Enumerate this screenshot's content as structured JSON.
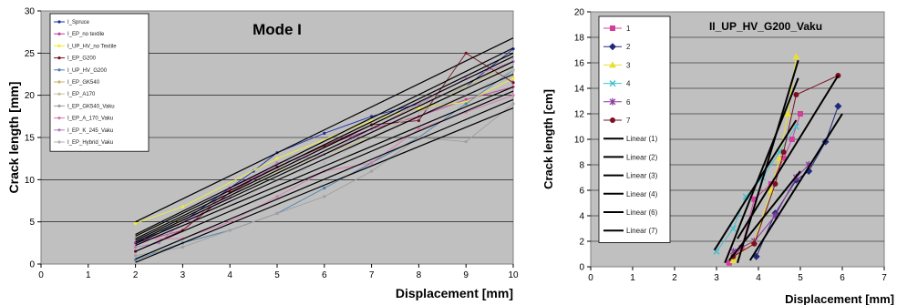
{
  "chart_data": [
    {
      "type": "line",
      "title": "Mode I",
      "xlabel": "Displacement  [mm]",
      "ylabel": "Crack length  [mm]",
      "xlim": [
        0,
        10
      ],
      "ylim": [
        0,
        30
      ],
      "xticks": [
        "0",
        "1",
        "2",
        "3",
        "4",
        "5",
        "6",
        "7",
        "8",
        "9",
        "10"
      ],
      "yticks": [
        "0",
        "5",
        "10",
        "15",
        "20",
        "25",
        "30"
      ],
      "grid": "horizontal",
      "legend_position": "top-left",
      "series": [
        {
          "name": "I_Spruce",
          "color": "#1b2ea6",
          "x": [
            2,
            3,
            4,
            4.5,
            5,
            6,
            7,
            8,
            9,
            10
          ],
          "y": [
            2.5,
            5,
            9,
            11,
            13.2,
            15.5,
            17.5,
            19,
            21,
            25.5
          ]
        },
        {
          "name": "I_EP_no textile",
          "color": "#c2409a",
          "x": [
            2,
            3,
            4,
            5,
            6,
            7,
            8,
            9,
            10
          ],
          "y": [
            2.5,
            4,
            9,
            11.5,
            14,
            16,
            17.5,
            19.5,
            21
          ]
        },
        {
          "name": "I_UP_HV_no Textile",
          "color": "#f0ef2f",
          "x": [
            2,
            3,
            5,
            7,
            8,
            9,
            10
          ],
          "y": [
            4.8,
            6.8,
            12.5,
            17,
            18.5,
            19.2,
            22
          ]
        },
        {
          "name": "I_EP_G200",
          "color": "#7a1020",
          "x": [
            2,
            3,
            4,
            5,
            6,
            7,
            8,
            9,
            10
          ],
          "y": [
            1.5,
            4,
            8.5,
            11.5,
            14,
            16.5,
            17,
            25,
            21.5
          ]
        },
        {
          "name": "I_UP_HV_G200",
          "color": "#4a7fb0",
          "x": [
            2,
            3,
            4,
            5,
            6,
            7,
            8,
            9,
            10
          ],
          "y": [
            0.5,
            2.5,
            4,
            6,
            9,
            12,
            15,
            19,
            23
          ]
        },
        {
          "name": "I_EP_GK540",
          "color": "#c7b46a",
          "x": [
            2,
            3,
            4,
            5,
            6,
            7,
            8,
            9,
            10
          ],
          "y": [
            3,
            5,
            8,
            11,
            13,
            15,
            18,
            21,
            24
          ]
        },
        {
          "name": "I_EP_A170",
          "color": "#c0c0a0",
          "x": [
            2,
            3,
            4,
            5,
            6,
            7,
            8,
            9,
            10
          ],
          "y": [
            3.5,
            5.5,
            8,
            11,
            13,
            16,
            19,
            21,
            23
          ]
        },
        {
          "name": "I_EP_GK540_Vaku",
          "color": "#9f9f9f",
          "x": [
            2,
            3,
            4,
            5,
            6,
            7,
            8,
            9,
            10
          ],
          "y": [
            1,
            2,
            4,
            6,
            8,
            11,
            15,
            14.5,
            19
          ]
        },
        {
          "name": "I_EP_A_170_Vaku",
          "color": "#d879b0",
          "x": [
            2,
            3,
            4,
            5,
            6,
            7,
            8,
            9,
            10
          ],
          "y": [
            3,
            3,
            5,
            8,
            11,
            12,
            16,
            18,
            20
          ]
        },
        {
          "name": "I_EP_K_245_Vaku",
          "color": "#b37bc0",
          "x": [
            2,
            2.5,
            3,
            4,
            5,
            6,
            7,
            8,
            9,
            10
          ],
          "y": [
            2,
            2.5,
            5,
            8,
            12,
            13,
            16,
            19,
            22,
            24
          ]
        },
        {
          "name": "I_EP_Hybrid_Vaku",
          "color": "#b3b3b3",
          "x": [
            2,
            3,
            4,
            5,
            6,
            7,
            8,
            9,
            10
          ],
          "y": [
            3,
            4.5,
            7,
            10,
            12,
            15,
            18,
            20,
            23
          ]
        }
      ],
      "trend_lines": [
        {
          "x": [
            2,
            10
          ],
          "y": [
            5,
            26.8
          ]
        },
        {
          "x": [
            2,
            10
          ],
          "y": [
            3.5,
            25.6
          ]
        },
        {
          "x": [
            2,
            10
          ],
          "y": [
            3.3,
            25.0
          ]
        },
        {
          "x": [
            2,
            10
          ],
          "y": [
            3.0,
            24.6
          ]
        },
        {
          "x": [
            2,
            10
          ],
          "y": [
            2.8,
            24.0
          ]
        },
        {
          "x": [
            2,
            10
          ],
          "y": [
            2.6,
            23.4
          ]
        },
        {
          "x": [
            2,
            10
          ],
          "y": [
            2.4,
            22.5
          ]
        },
        {
          "x": [
            2,
            10
          ],
          "y": [
            2.2,
            21.0
          ]
        },
        {
          "x": [
            2,
            10
          ],
          "y": [
            1.5,
            20.5
          ]
        },
        {
          "x": [
            2,
            10
          ],
          "y": [
            0.6,
            19.5
          ]
        },
        {
          "x": [
            2,
            10
          ],
          "y": [
            0.2,
            18.5
          ]
        }
      ]
    },
    {
      "type": "line",
      "title": "II_UP_HV_G200_Vaku",
      "xlabel": "Displacement  [mm]",
      "ylabel": "Crack length  [cm]",
      "xlim": [
        0,
        7
      ],
      "ylim": [
        0,
        20
      ],
      "xticks": [
        "0",
        "1",
        "2",
        "3",
        "4",
        "5",
        "6",
        "7"
      ],
      "yticks": [
        "0",
        "2",
        "4",
        "6",
        "8",
        "10",
        "12",
        "14",
        "16",
        "18",
        "20"
      ],
      "grid": "horizontal",
      "legend_position": "top-left",
      "series": [
        {
          "name": "1",
          "color": "#d0409a",
          "marker": "square",
          "x": [
            3.3,
            3.6,
            3.9,
            4.3,
            4.6,
            4.8,
            5.0
          ],
          "y": [
            0.3,
            1.5,
            5.3,
            6.5,
            8.5,
            10,
            12
          ]
        },
        {
          "name": "2",
          "color": "#1e2a7a",
          "marker": "diamond",
          "x": [
            3.95,
            4.4,
            4.9,
            5.2,
            5.6,
            5.9
          ],
          "y": [
            0.8,
            4.2,
            6.8,
            7.5,
            9.8,
            12.6
          ]
        },
        {
          "name": "3",
          "color": "#e8e030",
          "marker": "triangle",
          "x": [
            3.4,
            3.9,
            4.3,
            4.5,
            4.7,
            4.9
          ],
          "y": [
            0.5,
            2,
            6,
            8.5,
            12,
            16.5
          ]
        },
        {
          "name": "4",
          "color": "#40c0d0",
          "marker": "x",
          "x": [
            3.0,
            3.4,
            3.7,
            4.1,
            4.5,
            4.9
          ],
          "y": [
            1.2,
            3,
            5.5,
            7,
            9,
            11
          ]
        },
        {
          "name": "6",
          "color": "#8a3aa0",
          "marker": "star",
          "x": [
            3.4,
            3.9,
            4.4,
            4.9,
            5.2
          ],
          "y": [
            1.2,
            2,
            4,
            7,
            8
          ]
        },
        {
          "name": "7",
          "color": "#7a1020",
          "marker": "circle",
          "x": [
            3.4,
            3.9,
            4.4,
            4.6,
            4.9,
            5.9
          ],
          "y": [
            0.8,
            1.8,
            6.5,
            9,
            13.5,
            15
          ]
        }
      ],
      "trend_lines": [
        {
          "name": "Linear (1)",
          "x": [
            3.2,
            4.95
          ],
          "y": [
            0.3,
            14.8
          ]
        },
        {
          "name": "Linear (2)",
          "x": [
            3.8,
            6.0
          ],
          "y": [
            0.5,
            12.0
          ]
        },
        {
          "name": "Linear (3)",
          "x": [
            3.5,
            4.95
          ],
          "y": [
            0.3,
            16.2
          ]
        },
        {
          "name": "Linear (4)",
          "x": [
            2.95,
            4.9
          ],
          "y": [
            1.3,
            11.5
          ]
        },
        {
          "name": "Linear (6)",
          "x": [
            3.3,
            5.0
          ],
          "y": [
            0.5,
            7.5
          ]
        },
        {
          "name": "Linear (7)",
          "x": [
            3.5,
            5.9
          ],
          "y": [
            2.2,
            15.0
          ]
        }
      ]
    }
  ]
}
